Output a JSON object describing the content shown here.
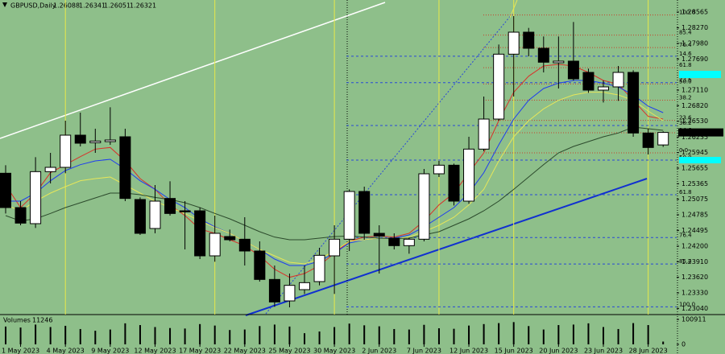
{
  "chart_data": {
    "type": "candlestick",
    "symbol": "GBPUSD,Daily",
    "categories": [
      null,
      "1 May 2023",
      null,
      null,
      "4 May 2023",
      null,
      null,
      "9 May 2023",
      null,
      null,
      "12 May 2023",
      null,
      null,
      "17 May 2023",
      null,
      null,
      "22 May 2023",
      null,
      null,
      "25 May 2023",
      null,
      null,
      "30 May 2023",
      null,
      null,
      "2 Jun 2023",
      null,
      null,
      "7 Jun 2023",
      null,
      null,
      "12 Jun 2023",
      null,
      null,
      "15 Jun 2023",
      null,
      null,
      "20 Jun 2023",
      null,
      null,
      "23 Jun 2023",
      null,
      null,
      "28 Jun 2023",
      null
    ],
    "open": [
      1.2556,
      1.2492,
      1.2462,
      1.2559,
      1.2567,
      1.2627,
      1.2613,
      1.2615,
      1.2624,
      1.2507,
      1.2453,
      1.2509,
      1.2486,
      1.2486,
      1.2402,
      1.2438,
      1.2433,
      1.2411,
      1.2358,
      1.2318,
      1.2339,
      1.2354,
      1.2402,
      1.2433,
      1.2522,
      1.2444,
      1.2435,
      1.2421,
      1.2433,
      1.2555,
      1.2571,
      1.2504,
      1.2601,
      1.2657,
      1.2778,
      1.2819,
      1.2789,
      1.2762,
      1.2765,
      1.2744,
      1.2711,
      1.2717,
      1.2744,
      1.2631,
      1.26088
    ],
    "high": [
      1.2571,
      1.2504,
      1.2586,
      1.2594,
      1.2654,
      1.2669,
      1.2639,
      1.2679,
      1.2639,
      1.2511,
      1.2534,
      1.2541,
      1.2504,
      1.2492,
      1.2477,
      1.2451,
      1.2474,
      1.2429,
      1.2384,
      1.2369,
      1.2384,
      1.2417,
      1.2459,
      1.2526,
      1.2531,
      1.2459,
      1.2444,
      1.2436,
      1.2564,
      1.2579,
      1.2574,
      1.2624,
      1.2699,
      1.2796,
      1.2849,
      1.2827,
      1.2811,
      1.2811,
      1.2838,
      1.2751,
      1.2729,
      1.2756,
      1.2748,
      1.2639,
      1.26341
    ],
    "low": [
      1.2481,
      1.2459,
      1.2454,
      1.2537,
      1.2556,
      1.2606,
      1.2594,
      1.2609,
      1.2504,
      1.2441,
      1.2444,
      1.2477,
      1.2414,
      1.2396,
      1.2391,
      1.2429,
      1.2384,
      1.2354,
      1.2307,
      1.2306,
      1.2331,
      1.2347,
      1.2331,
      1.2411,
      1.2432,
      1.2369,
      1.2414,
      1.2406,
      1.2429,
      1.2549,
      1.2496,
      1.2499,
      1.2597,
      1.2654,
      1.2699,
      1.2774,
      1.2744,
      1.2714,
      1.2729,
      1.2706,
      1.2688,
      1.2691,
      1.2624,
      1.2591,
      1.26051
    ],
    "close": [
      1.2492,
      1.2463,
      1.2559,
      1.2567,
      1.2627,
      1.2612,
      1.2616,
      1.2618,
      1.2509,
      1.2444,
      1.2504,
      1.2481,
      1.2484,
      1.2402,
      1.2444,
      1.2432,
      1.2411,
      1.2358,
      1.2316,
      1.2347,
      1.2352,
      1.2403,
      1.2433,
      1.2522,
      1.2444,
      1.2439,
      1.2421,
      1.2433,
      1.2555,
      1.2571,
      1.2504,
      1.2601,
      1.2657,
      1.2778,
      1.2819,
      1.2789,
      1.2763,
      1.2765,
      1.2732,
      1.2711,
      1.2717,
      1.2744,
      1.2631,
      1.2604,
      1.26321
    ],
    "up_color": "#ffffff",
    "down_color": "#000000",
    "ylim": [
      1.2294,
      1.2879
    ],
    "yticks": [
      1.28565,
      {
        "value": 1.2827,
        "label": "1.28270"
      },
      {
        "value": 1.2798,
        "label": "1.27980"
      },
      {
        "value": 1.2769,
        "label": "1.27690"
      },
      {
        "value": 1.2711,
        "label": "1.27110"
      },
      {
        "value": 1.2682,
        "label": "1.26820"
      },
      {
        "value": 1.2653,
        "label": "1.26530"
      },
      1.26235,
      1.25945,
      1.25655,
      1.25365,
      1.25075,
      1.24785,
      1.24495,
      {
        "value": 1.242,
        "label": "1.24200"
      },
      {
        "value": 1.2391,
        "label": "1.23910"
      },
      {
        "value": 1.2362,
        "label": "1.23620"
      },
      {
        "value": 1.2333,
        "label": "1.23330"
      },
      {
        "value": 1.2304,
        "label": "1.23040"
      }
    ],
    "lines": [
      {
        "color": "#d8322a",
        "values": [
          1.2534,
          1.2492,
          1.2519,
          1.2557,
          1.2572,
          1.2587,
          1.2601,
          1.2604,
          1.2579,
          1.2546,
          1.2526,
          1.2497,
          1.2477,
          1.2452,
          1.2444,
          1.2432,
          1.2421,
          1.2402,
          1.2377,
          1.2362,
          1.2369,
          1.2384,
          1.2407,
          1.2429,
          1.2437,
          1.2439,
          1.2437,
          1.2444,
          1.2467,
          1.2497,
          1.2519,
          1.2557,
          1.2594,
          1.2654,
          1.2707,
          1.2737,
          1.2756,
          1.2759,
          1.2756,
          1.2744,
          1.2729,
          1.2722,
          1.2692,
          1.2662,
          1.2657
        ]
      },
      {
        "color": "#1e3cf0",
        "values": [
          1.2504,
          1.2504,
          1.2519,
          1.2542,
          1.2561,
          1.2572,
          1.2579,
          1.2582,
          1.2564,
          1.2542,
          1.2526,
          1.2507,
          1.2492,
          1.2471,
          1.2456,
          1.2444,
          1.2429,
          1.2414,
          1.2396,
          1.2384,
          1.2384,
          1.2392,
          1.2407,
          1.2426,
          1.2432,
          1.2435,
          1.2435,
          1.2441,
          1.2456,
          1.2474,
          1.2492,
          1.2519,
          1.2557,
          1.2609,
          1.2657,
          1.2692,
          1.2714,
          1.2724,
          1.2729,
          1.2729,
          1.2724,
          1.2717,
          1.2702,
          1.2681,
          1.2669
        ]
      },
      {
        "color": "#e6e65a",
        "values": [
          1.2497,
          1.2486,
          1.2504,
          1.2519,
          1.2531,
          1.2542,
          1.2546,
          1.2549,
          1.2534,
          1.2519,
          1.2504,
          1.2492,
          1.2481,
          1.2467,
          1.2455,
          1.2444,
          1.2429,
          1.2414,
          1.2402,
          1.239,
          1.2387,
          1.2396,
          1.2411,
          1.2429,
          1.2432,
          1.2435,
          1.2434,
          1.2437,
          1.2447,
          1.2459,
          1.2474,
          1.2497,
          1.2526,
          1.2579,
          1.2624,
          1.2654,
          1.2676,
          1.2692,
          1.2702,
          1.2707,
          1.2707,
          1.2702,
          1.2692,
          1.2672,
          1.2654
        ]
      },
      {
        "color": "#2c4a2c",
        "values": [
          1.2477,
          1.2467,
          1.2471,
          1.2481,
          1.2492,
          1.2501,
          1.251,
          1.2519,
          1.2519,
          1.2516,
          1.2511,
          1.2507,
          1.2501,
          1.2492,
          1.2481,
          1.2471,
          1.2459,
          1.2447,
          1.2437,
          1.2432,
          1.2432,
          1.2435,
          1.2438,
          1.2439,
          1.2437,
          1.2435,
          1.2434,
          1.2435,
          1.2441,
          1.2447,
          1.2459,
          1.2471,
          1.2486,
          1.2504,
          1.2526,
          1.2549,
          1.2572,
          1.2594,
          1.2606,
          1.2615,
          1.2624,
          1.2631,
          1.2642,
          1.2639,
          1.2636
        ]
      }
    ],
    "fibonacci": [
      {
        "color": "#c8402a",
        "price_0": 1.2594,
        "price_100": 1.2851,
        "levels": [
          {
            "value": 100,
            "label": "100.0"
          },
          85.4,
          76.4,
          61.8,
          {
            "value": 50,
            "label": "50.0"
          },
          38.2,
          23.6,
          14.6,
          {
            "value": 0,
            "label": "0.0"
          }
        ]
      },
      {
        "color": "#2848d8",
        "price_0": 1.2854,
        "price_100": 1.2307,
        "levels": [
          14.6,
          23.6,
          38.2,
          {
            "value": 50,
            "label": "50.0"
          },
          61.8,
          76.4,
          85.4,
          {
            "value": 100,
            "label": "100.0"
          }
        ]
      }
    ],
    "volume": {
      "name": "Volumes",
      "color": "#000000",
      "values": [
        72000,
        68000,
        80000,
        70000,
        75000,
        62000,
        55000,
        60000,
        85000,
        78000,
        70000,
        66000,
        64000,
        82000,
        76000,
        58000,
        60000,
        74000,
        80000,
        72000,
        45000,
        52000,
        70000,
        84000,
        77000,
        73000,
        62000,
        60000,
        79000,
        65000,
        63000,
        76000,
        82000,
        86000,
        90000,
        74000,
        60000,
        78000,
        80000,
        85000,
        70000,
        62000,
        86000,
        78000,
        11246
      ],
      "ylim": [
        0,
        100911
      ],
      "yticks": [
        100911,
        0
      ]
    }
  }
}
